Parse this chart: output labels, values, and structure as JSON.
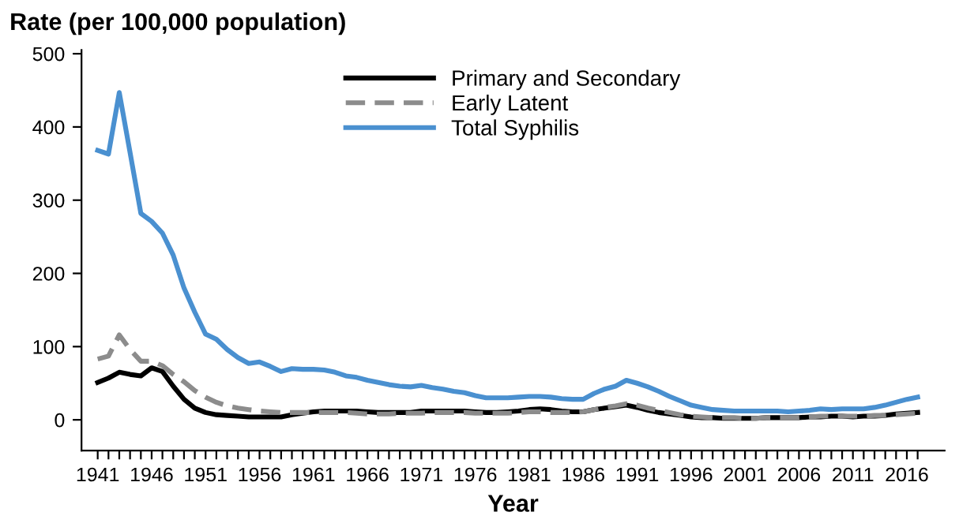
{
  "chart_data": {
    "type": "line",
    "ylabel": "Rate (per 100,000 population)",
    "xlabel": "Year",
    "x": [
      1941,
      1942,
      1943,
      1944,
      1945,
      1946,
      1947,
      1948,
      1949,
      1950,
      1951,
      1952,
      1953,
      1954,
      1955,
      1956,
      1957,
      1958,
      1959,
      1960,
      1961,
      1962,
      1963,
      1964,
      1965,
      1966,
      1967,
      1968,
      1969,
      1970,
      1971,
      1972,
      1973,
      1974,
      1975,
      1976,
      1977,
      1978,
      1979,
      1980,
      1981,
      1982,
      1983,
      1984,
      1985,
      1986,
      1987,
      1988,
      1989,
      1990,
      1991,
      1992,
      1993,
      1994,
      1995,
      1996,
      1997,
      1998,
      1999,
      2000,
      2001,
      2002,
      2003,
      2004,
      2005,
      2006,
      2007,
      2008,
      2009,
      2010,
      2011,
      2012,
      2013,
      2014,
      2015,
      2016,
      2017
    ],
    "series": [
      {
        "name": "Primary and Secondary",
        "color": "#000000",
        "line_style": "solid",
        "values": [
          51,
          57,
          65,
          62,
          60,
          71,
          66,
          46,
          28,
          16,
          10,
          7,
          6,
          5,
          4,
          4,
          4,
          4,
          7,
          9,
          11,
          12,
          12,
          12,
          12,
          11,
          10,
          10,
          10,
          10,
          12,
          12,
          12,
          12,
          12,
          11,
          10,
          10,
          11,
          12,
          14,
          15,
          14,
          12,
          11,
          11,
          14,
          16,
          18,
          20,
          17,
          13,
          10,
          8,
          6,
          4,
          3,
          3,
          2,
          2,
          2,
          2,
          3,
          3,
          3,
          3,
          4,
          4,
          5,
          5,
          4,
          5,
          5,
          6,
          8,
          9,
          10
        ]
      },
      {
        "name": "Early Latent",
        "color": "#8c8c8c",
        "line_style": "dashed",
        "values": [
          83,
          87,
          116,
          96,
          80,
          80,
          74,
          62,
          52,
          40,
          31,
          24,
          19,
          16,
          14,
          12,
          11,
          10,
          10,
          10,
          10,
          10,
          10,
          10,
          9,
          8,
          8,
          8,
          9,
          9,
          9,
          10,
          10,
          10,
          10,
          9,
          9,
          9,
          9,
          10,
          11,
          11,
          10,
          10,
          10,
          11,
          14,
          17,
          19,
          22,
          20,
          16,
          13,
          10,
          7,
          5,
          4,
          3,
          3,
          3,
          2,
          2,
          3,
          3,
          3,
          3,
          4,
          5,
          5,
          5,
          5,
          5,
          6,
          6,
          7,
          8,
          9
        ]
      },
      {
        "name": "Total Syphilis",
        "color": "#4a90d0",
        "line_style": "solid",
        "values": [
          368,
          363,
          447,
          365,
          282,
          271,
          255,
          225,
          180,
          147,
          117,
          110,
          96,
          85,
          77,
          79,
          73,
          66,
          70,
          69,
          69,
          68,
          65,
          60,
          58,
          54,
          51,
          48,
          46,
          45,
          47,
          44,
          42,
          39,
          37,
          33,
          30,
          30,
          30,
          31,
          32,
          32,
          31,
          29,
          28,
          28,
          36,
          42,
          46,
          54,
          50,
          45,
          39,
          32,
          26,
          20,
          17,
          14,
          13,
          12,
          12,
          12,
          12,
          12,
          11,
          12,
          13,
          15,
          14,
          15,
          15,
          15,
          17,
          20,
          24,
          28,
          31
        ]
      }
    ],
    "xlim": [
      1939.5,
      2019.5
    ],
    "ylim": [
      -42,
      505
    ],
    "yticks": [
      0,
      100,
      200,
      300,
      400,
      500
    ],
    "xticks": [
      1941,
      {
        "value": 1942,
        "label": null
      },
      {
        "value": 1943,
        "label": null
      },
      {
        "value": 1944,
        "label": null
      },
      {
        "value": 1945,
        "label": null
      },
      1946,
      {
        "value": 1947,
        "label": null
      },
      {
        "value": 1948,
        "label": null
      },
      {
        "value": 1949,
        "label": null
      },
      {
        "value": 1950,
        "label": null
      },
      1951,
      {
        "value": 1952,
        "label": null
      },
      {
        "value": 1953,
        "label": null
      },
      {
        "value": 1954,
        "label": null
      },
      {
        "value": 1955,
        "label": null
      },
      1956,
      {
        "value": 1957,
        "label": null
      },
      {
        "value": 1958,
        "label": null
      },
      {
        "value": 1959,
        "label": null
      },
      {
        "value": 1960,
        "label": null
      },
      1961,
      {
        "value": 1962,
        "label": null
      },
      {
        "value": 1963,
        "label": null
      },
      {
        "value": 1964,
        "label": null
      },
      {
        "value": 1965,
        "label": null
      },
      1966,
      {
        "value": 1967,
        "label": null
      },
      {
        "value": 1968,
        "label": null
      },
      {
        "value": 1969,
        "label": null
      },
      {
        "value": 1970,
        "label": null
      },
      1971,
      {
        "value": 1972,
        "label": null
      },
      {
        "value": 1973,
        "label": null
      },
      {
        "value": 1974,
        "label": null
      },
      {
        "value": 1975,
        "label": null
      },
      1976,
      {
        "value": 1977,
        "label": null
      },
      {
        "value": 1978,
        "label": null
      },
      {
        "value": 1979,
        "label": null
      },
      {
        "value": 1980,
        "label": null
      },
      1981,
      {
        "value": 1982,
        "label": null
      },
      {
        "value": 1983,
        "label": null
      },
      {
        "value": 1984,
        "label": null
      },
      {
        "value": 1985,
        "label": null
      },
      1986,
      {
        "value": 1987,
        "label": null
      },
      {
        "value": 1988,
        "label": null
      },
      {
        "value": 1989,
        "label": null
      },
      {
        "value": 1990,
        "label": null
      },
      1991,
      {
        "value": 1992,
        "label": null
      },
      {
        "value": 1993,
        "label": null
      },
      {
        "value": 1994,
        "label": null
      },
      {
        "value": 1995,
        "label": null
      },
      1996,
      {
        "value": 1997,
        "label": null
      },
      {
        "value": 1998,
        "label": null
      },
      {
        "value": 1999,
        "label": null
      },
      {
        "value": 2000,
        "label": null
      },
      2001,
      {
        "value": 2002,
        "label": null
      },
      {
        "value": 2003,
        "label": null
      },
      {
        "value": 2004,
        "label": null
      },
      {
        "value": 2005,
        "label": null
      },
      2006,
      {
        "value": 2007,
        "label": null
      },
      {
        "value": 2008,
        "label": null
      },
      {
        "value": 2009,
        "label": null
      },
      {
        "value": 2010,
        "label": null
      },
      2011,
      {
        "value": 2012,
        "label": null
      },
      {
        "value": 2013,
        "label": null
      },
      {
        "value": 2014,
        "label": null
      },
      {
        "value": 2015,
        "label": null
      },
      2016,
      {
        "value": 2017,
        "label": null
      }
    ],
    "grid": false,
    "legend": "top",
    "marker": "none"
  }
}
